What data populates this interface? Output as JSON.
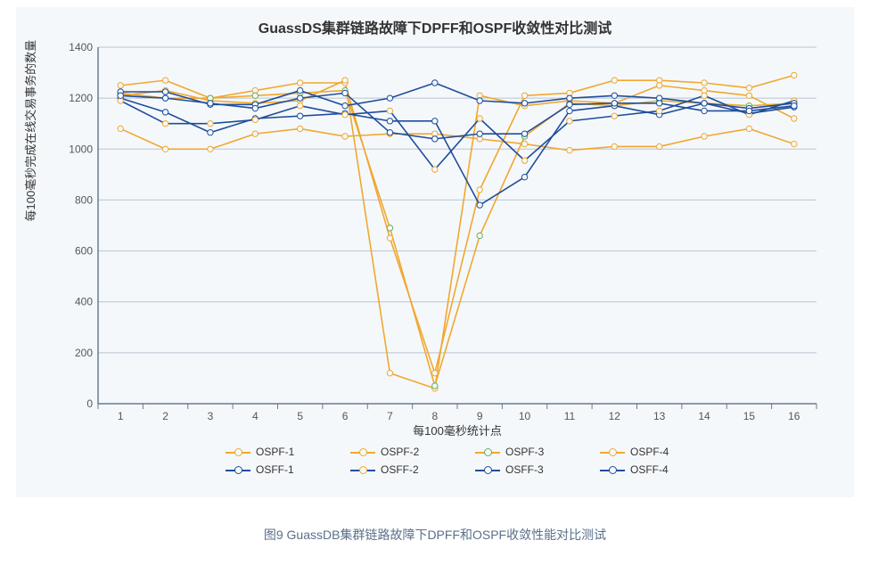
{
  "title": "GuassDS集群链路故障下DPFF和OSPF收敛性对比测试",
  "xlabel": "每100毫秒统计点",
  "ylabel": "每100毫秒完成在线交易事务的数量",
  "caption": "图9 GuassDB集群链路故障下DPFF和OSPF收敛性能对比测试",
  "title_fontsize": 16,
  "label_fontsize": 13,
  "caption_fontsize": 14,
  "background_color": "#f5f8fb",
  "grid_color": "#b8c4d0",
  "axis_color": "#6a7b8c",
  "x_categories": [
    "1",
    "2",
    "3",
    "4",
    "5",
    "6",
    "7",
    "8",
    "9",
    "10",
    "11",
    "12",
    "13",
    "14",
    "15",
    "16"
  ],
  "ylim": [
    0,
    1400
  ],
  "ytick_step": 200,
  "line_width": 1.6,
  "marker_radius": 3.2,
  "series": [
    {
      "name": "OSPF-1",
      "color_line": "#f0a830",
      "color_marker": "#f0a830",
      "values": [
        1250,
        1270,
        1200,
        1230,
        1260,
        1260,
        650,
        120,
        840,
        1210,
        1220,
        1270,
        1270,
        1260,
        1240,
        1290
      ]
    },
    {
      "name": "OSPF-2",
      "color_line": "#f0a830",
      "color_marker": "#f0a830",
      "values": [
        1210,
        1230,
        1190,
        1180,
        1190,
        1270,
        120,
        60,
        1210,
        1170,
        1190,
        1180,
        1250,
        1230,
        1210,
        1120
      ]
    },
    {
      "name": "OSPF-3",
      "color_line": "#f0a830",
      "color_marker": "#6aad5a",
      "values": [
        1220,
        1200,
        1200,
        1210,
        1220,
        1230,
        690,
        70,
        660,
        1050,
        1180,
        1170,
        1190,
        1180,
        1170,
        1180
      ]
    },
    {
      "name": "OSPF-4",
      "color_line": "#f0a830",
      "color_marker": "#f0a830",
      "values": [
        1080,
        1000,
        1000,
        1060,
        1080,
        1050,
        1060,
        1060,
        1040,
        1020,
        995,
        1010,
        1010,
        1050,
        1080,
        1020
      ]
    },
    {
      "name": "OSFF-1",
      "color_line": "#1f4e9c",
      "color_marker": "#1f4e9c",
      "values": [
        1200,
        1145,
        1065,
        1120,
        1130,
        1140,
        1110,
        1110,
        780,
        890,
        1150,
        1170,
        1135,
        1180,
        1140,
        1165
      ]
    },
    {
      "name": "OSFF-2",
      "color_line": "#1f4e9c",
      "color_marker": "#f0a830",
      "values": [
        1190,
        1100,
        1100,
        1115,
        1170,
        1135,
        1150,
        920,
        1120,
        955,
        1110,
        1130,
        1150,
        1210,
        1135,
        1190
      ]
    },
    {
      "name": "OSFF-3",
      "color_line": "#1f4e9c",
      "color_marker": "#1f4e9c",
      "values": [
        1225,
        1225,
        1175,
        1175,
        1230,
        1170,
        1200,
        1260,
        1190,
        1180,
        1200,
        1210,
        1200,
        1180,
        1160,
        1180
      ]
    },
    {
      "name": "OSFF-4",
      "color_line": "#1f4e9c",
      "color_marker": "#1f4e9c",
      "values": [
        1210,
        1200,
        1180,
        1160,
        1200,
        1220,
        1065,
        1040,
        1060,
        1060,
        1175,
        1180,
        1180,
        1150,
        1150,
        1170
      ]
    }
  ],
  "legend_rows": [
    [
      "OSPF-1",
      "OSPF-2",
      "OSPF-3",
      "OSPF-4"
    ],
    [
      "OSFF-1",
      "OSFF-2",
      "OSFF-3",
      "OSFF-4"
    ]
  ]
}
